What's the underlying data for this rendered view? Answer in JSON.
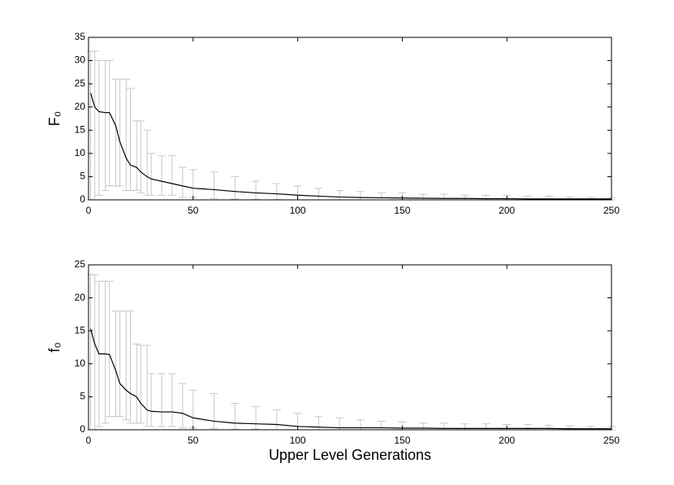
{
  "chart_data": [
    {
      "type": "line",
      "ylabel": "F₀",
      "x": [
        1,
        3,
        5,
        8,
        10,
        13,
        15,
        18,
        20,
        23,
        25,
        28,
        30,
        35,
        40,
        45,
        50,
        60,
        70,
        80,
        90,
        100,
        110,
        120,
        130,
        140,
        150,
        160,
        170,
        180,
        190,
        200,
        210,
        220,
        230,
        240,
        250
      ],
      "values": [
        23,
        20,
        19,
        18.8,
        18.8,
        16,
        12.5,
        9,
        7.5,
        7,
        6,
        5,
        4.5,
        4,
        3.5,
        3,
        2.5,
        2.2,
        1.8,
        1.5,
        1.3,
        1,
        0.8,
        0.6,
        0.5,
        0.45,
        0.4,
        0.35,
        0.3,
        0.3,
        0.25,
        0.25,
        0.2,
        0.2,
        0.2,
        0.2,
        0.2
      ],
      "upper": [
        32,
        32,
        30,
        30,
        30,
        26,
        26,
        26,
        24,
        17,
        17,
        15,
        10,
        9.5,
        9.5,
        7,
        6.5,
        6,
        5,
        4,
        3.5,
        3,
        2.5,
        2,
        1.8,
        1.5,
        1.5,
        1.2,
        1.2,
        1,
        1,
        1,
        0.8,
        0.8,
        0.6,
        0.5,
        0.5
      ],
      "lower": [
        0,
        0,
        1,
        2,
        3,
        3,
        3,
        2,
        2,
        2,
        1.5,
        1,
        1,
        1,
        1,
        0.5,
        0.5,
        0.3,
        0.2,
        0.1,
        0.1,
        0,
        0,
        0,
        0,
        0,
        0,
        0,
        0,
        0,
        0,
        0,
        0,
        0,
        0,
        0,
        0
      ],
      "color": "#000000",
      "error_color": "#c8c8c8",
      "xlim": [
        0,
        250
      ],
      "xticks": [
        0,
        50,
        100,
        150,
        200,
        250
      ],
      "ylim": [
        0,
        35
      ],
      "yticks": [
        0,
        5,
        10,
        15,
        20,
        25,
        30,
        35
      ]
    },
    {
      "type": "line",
      "ylabel": "f₀",
      "xlabel": "Upper Level Generations",
      "x": [
        1,
        3,
        5,
        8,
        10,
        13,
        15,
        18,
        20,
        23,
        25,
        28,
        30,
        35,
        40,
        45,
        50,
        60,
        70,
        80,
        90,
        100,
        110,
        120,
        130,
        140,
        150,
        160,
        170,
        180,
        190,
        200,
        210,
        220,
        230,
        240,
        250
      ],
      "values": [
        15.3,
        13,
        11.5,
        11.5,
        11.4,
        9,
        7,
        6,
        5.5,
        5,
        4,
        3,
        2.8,
        2.7,
        2.7,
        2.5,
        1.8,
        1.3,
        1,
        0.9,
        0.8,
        0.5,
        0.4,
        0.3,
        0.3,
        0.3,
        0.25,
        0.25,
        0.2,
        0.2,
        0.2,
        0.2,
        0.2,
        0.2,
        0.15,
        0.15,
        0.15
      ],
      "upper": [
        23.5,
        23.5,
        22.5,
        22.5,
        22.5,
        18,
        18,
        18,
        18,
        13,
        12.8,
        12.8,
        8.5,
        8.5,
        8.5,
        7,
        6,
        5.5,
        4,
        3.5,
        3,
        2.5,
        2,
        1.8,
        1.5,
        1.3,
        1.2,
        1,
        1,
        0.9,
        0.9,
        0.8,
        0.8,
        0.7,
        0.6,
        0.5,
        0.5
      ],
      "lower": [
        0,
        0,
        0.5,
        1,
        2,
        2,
        2,
        1.5,
        1,
        1,
        1,
        0.5,
        0.5,
        0.5,
        0.5,
        0.3,
        0.3,
        0.2,
        0.1,
        0.1,
        0,
        0,
        0,
        0,
        0,
        0,
        0,
        0,
        0,
        0,
        0,
        0,
        0,
        0,
        0,
        0,
        0
      ],
      "color": "#000000",
      "error_color": "#c8c8c8",
      "xlim": [
        0,
        250
      ],
      "xticks": [
        0,
        50,
        100,
        150,
        200,
        250
      ],
      "ylim": [
        0,
        25
      ],
      "yticks": [
        0,
        5,
        10,
        15,
        20,
        25
      ]
    }
  ]
}
